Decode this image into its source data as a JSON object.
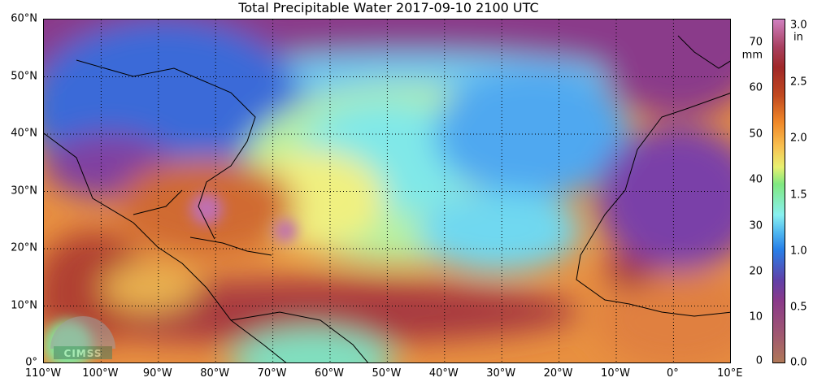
{
  "title": "Total Precipitable Water  2017-09-10 2100 UTC",
  "lat_labels": [
    "60°N",
    "50°N",
    "40°N",
    "30°N",
    "20°N",
    "10°N",
    "0°"
  ],
  "lon_labels": [
    "110°W",
    "100°W",
    "90°W",
    "80°W",
    "70°W",
    "60°W",
    "50°W",
    "40°W",
    "30°W",
    "20°W",
    "10°W",
    "0°",
    "10°E"
  ],
  "colorbar": {
    "mm_ticks": [
      "70",
      "60",
      "50",
      "40",
      "30",
      "20",
      "10",
      "0"
    ],
    "mm_unit": "mm",
    "in_ticks": [
      "3.0",
      "2.5",
      "2.0",
      "1.5",
      "1.0",
      "0.5",
      "0.0"
    ],
    "in_unit": "in",
    "range_mm": [
      0,
      75
    ],
    "colors": [
      "#b07858",
      "#8a3a8a",
      "#2880e8",
      "#88f0f0",
      "#80e880",
      "#e8f070",
      "#f08828",
      "#a02828",
      "#d080c0"
    ]
  },
  "logo": "CIMSS"
}
